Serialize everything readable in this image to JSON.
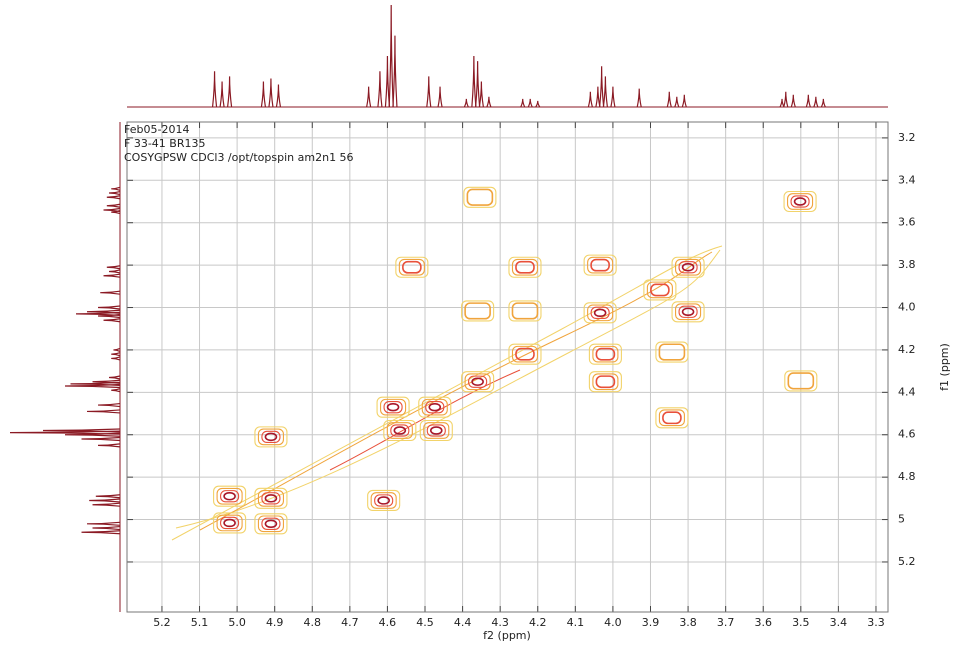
{
  "chart_data": {
    "type": "cosy",
    "header_lines": [
      "Feb05-2014",
      "F 33-41 BR135",
      "COSYGPSW CDCl3 /opt/topspin am2n1 56"
    ],
    "xlabel": "f2 (ppm)",
    "ylabel": "f1 (ppm)",
    "xlim": [
      5.293,
      3.268
    ],
    "ylim": [
      3.125,
      5.436
    ],
    "xticks": [
      5.2,
      5.1,
      {
        "value": 5,
        "label": "5.0"
      },
      4.9,
      4.8,
      4.7,
      4.6,
      4.5,
      4.4,
      4.3,
      4.2,
      4.1,
      {
        "value": 4,
        "label": "4.0"
      },
      3.9,
      3.8,
      3.7,
      3.6,
      3.5,
      3.4,
      3.3
    ],
    "yticks": [
      3.2,
      3.4,
      3.6,
      3.8,
      {
        "value": 4,
        "label": "4.0"
      },
      4.2,
      4.4,
      4.6,
      4.8,
      5.0,
      5.2
    ],
    "grid": true,
    "contour_colors": [
      "#f2d36a",
      "#f0a43c",
      "#e8503a",
      "#a8172a"
    ],
    "spectrum_color": "#8b1a24",
    "cross_peaks": {
      "f2": [
        5.02,
        5.02,
        4.91,
        4.91,
        4.91,
        4.61,
        4.585,
        4.567,
        4.474,
        4.47,
        4.535,
        4.36,
        4.354,
        4.36,
        4.234,
        4.234,
        4.234,
        4.034,
        4.034,
        4.02,
        4.02,
        3.843,
        3.843,
        3.8,
        3.8,
        3.875,
        3.502,
        3.5
      ],
      "f1": [
        4.89,
        5.016,
        4.9,
        5.02,
        4.61,
        4.91,
        4.47,
        4.58,
        4.47,
        4.58,
        3.81,
        4.35,
        3.48,
        4.016,
        4.22,
        3.81,
        4.016,
        4.025,
        3.8,
        4.22,
        4.35,
        4.21,
        4.52,
        3.81,
        4.02,
        3.917,
        3.5,
        4.346
      ],
      "levels": [
        4,
        4,
        4,
        4,
        4,
        4,
        4,
        4,
        4,
        4,
        3,
        4,
        2,
        2,
        3,
        3,
        2,
        4,
        3,
        3,
        3,
        2,
        3,
        4,
        4,
        3,
        4,
        2
      ]
    },
    "projection": {
      "ppm": [
        5.06,
        5.04,
        5.02,
        4.93,
        4.91,
        4.89,
        4.65,
        4.62,
        4.6,
        4.59,
        4.58,
        4.49,
        4.46,
        4.39,
        4.37,
        4.36,
        4.35,
        4.33,
        4.24,
        4.22,
        4.2,
        4.06,
        4.04,
        4.03,
        4.02,
        4.0,
        3.93,
        3.85,
        3.83,
        3.81,
        3.55,
        3.54,
        3.52,
        3.48,
        3.46,
        3.44
      ],
      "intensity": [
        35,
        25,
        30,
        25,
        28,
        22,
        20,
        35,
        50,
        100,
        70,
        30,
        20,
        8,
        50,
        45,
        25,
        10,
        8,
        8,
        6,
        15,
        20,
        40,
        30,
        20,
        18,
        15,
        10,
        12,
        8,
        15,
        12,
        12,
        10,
        8
      ]
    }
  }
}
